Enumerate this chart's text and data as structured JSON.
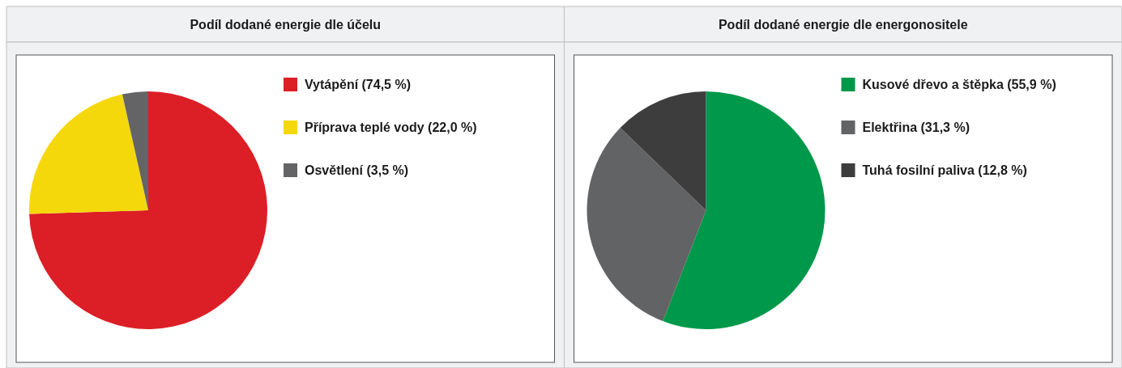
{
  "chart_data": [
    {
      "type": "pie",
      "title": "Podíl dodané energie dle účelu",
      "categories": [
        "Vytápění (74,5 %)",
        "Příprava teplé vody (22,0 %)",
        "Osvětlení (3,5 %)"
      ],
      "values": [
        74.5,
        22.0,
        3.5
      ],
      "colors": [
        "#dc1f26",
        "#f5d80c",
        "#646466"
      ],
      "legend": "top right"
    },
    {
      "type": "pie",
      "title": "Podíl dodané energie dle energonositele",
      "categories": [
        "Kusové dřevo a štěpka (55,9 %)",
        "Elektřina (31,3 %)",
        "Tuhá fosilní paliva (12,8 %)"
      ],
      "values": [
        55.9,
        31.3,
        12.8
      ],
      "colors": [
        "#00984a",
        "#626365",
        "#3d3d3e"
      ],
      "legend": "top right"
    }
  ]
}
